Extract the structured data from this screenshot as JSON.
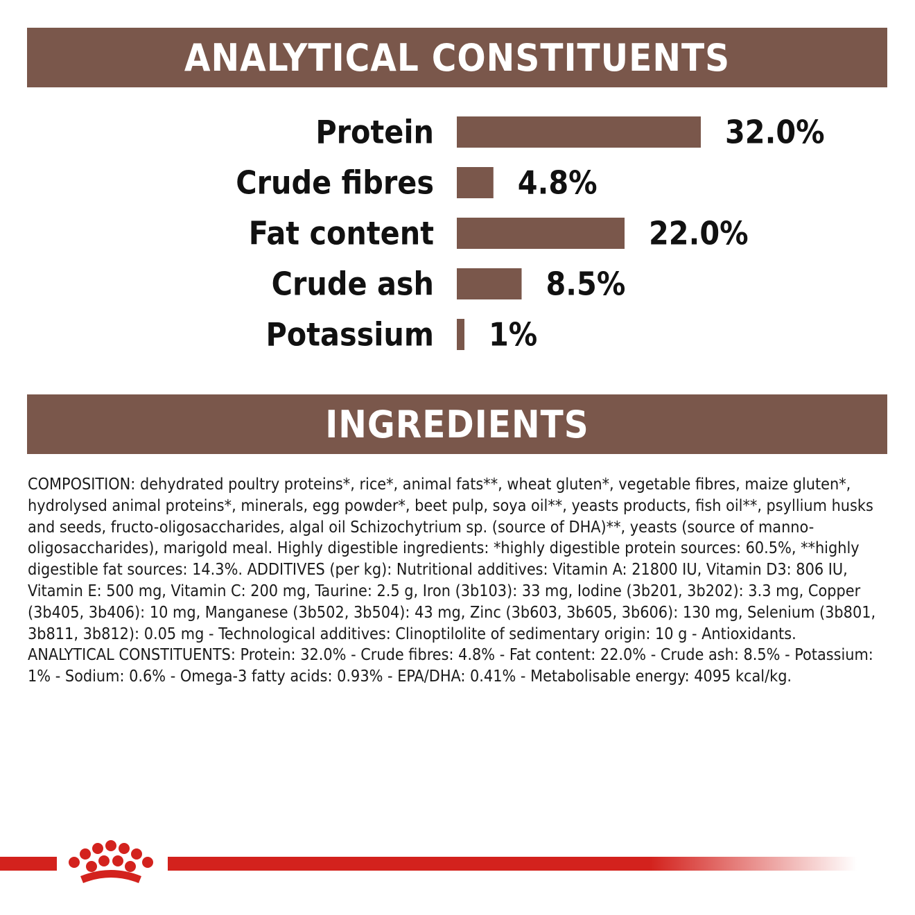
{
  "header": {
    "title": "ANALYTICAL CONSTITUENTS"
  },
  "ingredients": {
    "title": "INGREDIENTS",
    "composition": "COMPOSITION: dehydrated poultry proteins*, rice*, animal fats**, wheat gluten*, vegetable fibres, maize gluten*, hydrolysed animal proteins*, minerals, egg powder*, beet pulp, soya oil**, yeasts products, fish oil**, psyllium husks and seeds, fructo-oligosaccharides, algal oil Schizochytrium sp. (source of DHA)**, yeasts (source of manno-oligosaccharides), marigold meal. Highly digestible ingredients: *highly digestible protein sources: 60.5%, **highly digestible fat sources: 14.3%. ADDITIVES (per kg): Nutritional additives: Vitamin A: 21800 IU, Vitamin D3: 806 IU, Vitamin E: 500 mg, Vitamin C: 200 mg, Taurine: 2.5 g, Iron (3b103): 33 mg, Iodine (3b201, 3b202): 3.3 mg, Copper (3b405, 3b406): 10 mg, Manganese (3b502, 3b504): 43 mg, Zinc (3b603, 3b605, 3b606): 130 mg, Selenium (3b801, 3b811, 3b812): 0.05 mg - Technological additives: Clinoptilolite of sedimentary origin: 10 g - Antioxidants. ANALYTICAL CONSTITUENTS: Protein: 32.0% - Crude fibres: 4.8% - Fat content: 22.0% - Crude ash: 8.5% - Potassium: 1% - Sodium: 0.6% - Omega-3 fatty acids: 0.93% - EPA/DHA: 0.41% - Metabolisable energy: 4095 kcal/kg."
  },
  "chart_data": {
    "type": "bar",
    "orientation": "horizontal",
    "categories": [
      "Protein",
      "Crude fibres",
      "Fat content",
      "Crude ash",
      "Potassium"
    ],
    "values": [
      32.0,
      4.8,
      22.0,
      8.5,
      1
    ],
    "value_labels": [
      "32.0%",
      "4.8%",
      "22.0%",
      "8.5%",
      "1%"
    ],
    "xlim": [
      0,
      32
    ],
    "grid": false,
    "bar_color": "#7a574b"
  },
  "colors": {
    "banner": "#7a574b",
    "brand_red": "#d3221d"
  },
  "logo": {
    "icon": "crown-icon"
  }
}
